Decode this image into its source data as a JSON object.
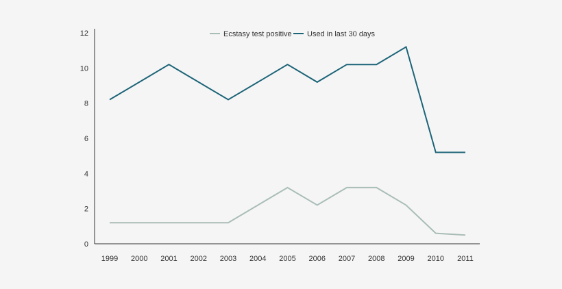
{
  "chart_data": {
    "type": "line",
    "title": "",
    "xlabel": "",
    "ylabel": "",
    "categories": [
      "1999",
      "2000",
      "2001",
      "2002",
      "2003",
      "2004",
      "2005",
      "2006",
      "2007",
      "2008",
      "2009",
      "2010",
      "2011"
    ],
    "ylim": [
      0,
      12
    ],
    "yticks": [
      "0",
      "2",
      "4",
      "6",
      "8",
      "10",
      "12"
    ],
    "grid": false,
    "legend_position": "top-center",
    "series": [
      {
        "name": "Ecstasy test positive",
        "color": "#a9bdb8",
        "values": [
          1.2,
          1.2,
          1.2,
          1.2,
          1.2,
          2.2,
          3.2,
          2.2,
          3.2,
          3.2,
          2.2,
          0.6,
          0.5
        ]
      },
      {
        "name": "Used in last 30 days",
        "color": "#1c6478",
        "values": [
          8.2,
          9.2,
          10.2,
          9.2,
          8.2,
          9.2,
          10.2,
          9.2,
          10.2,
          10.2,
          11.2,
          5.2,
          5.2
        ]
      }
    ]
  }
}
